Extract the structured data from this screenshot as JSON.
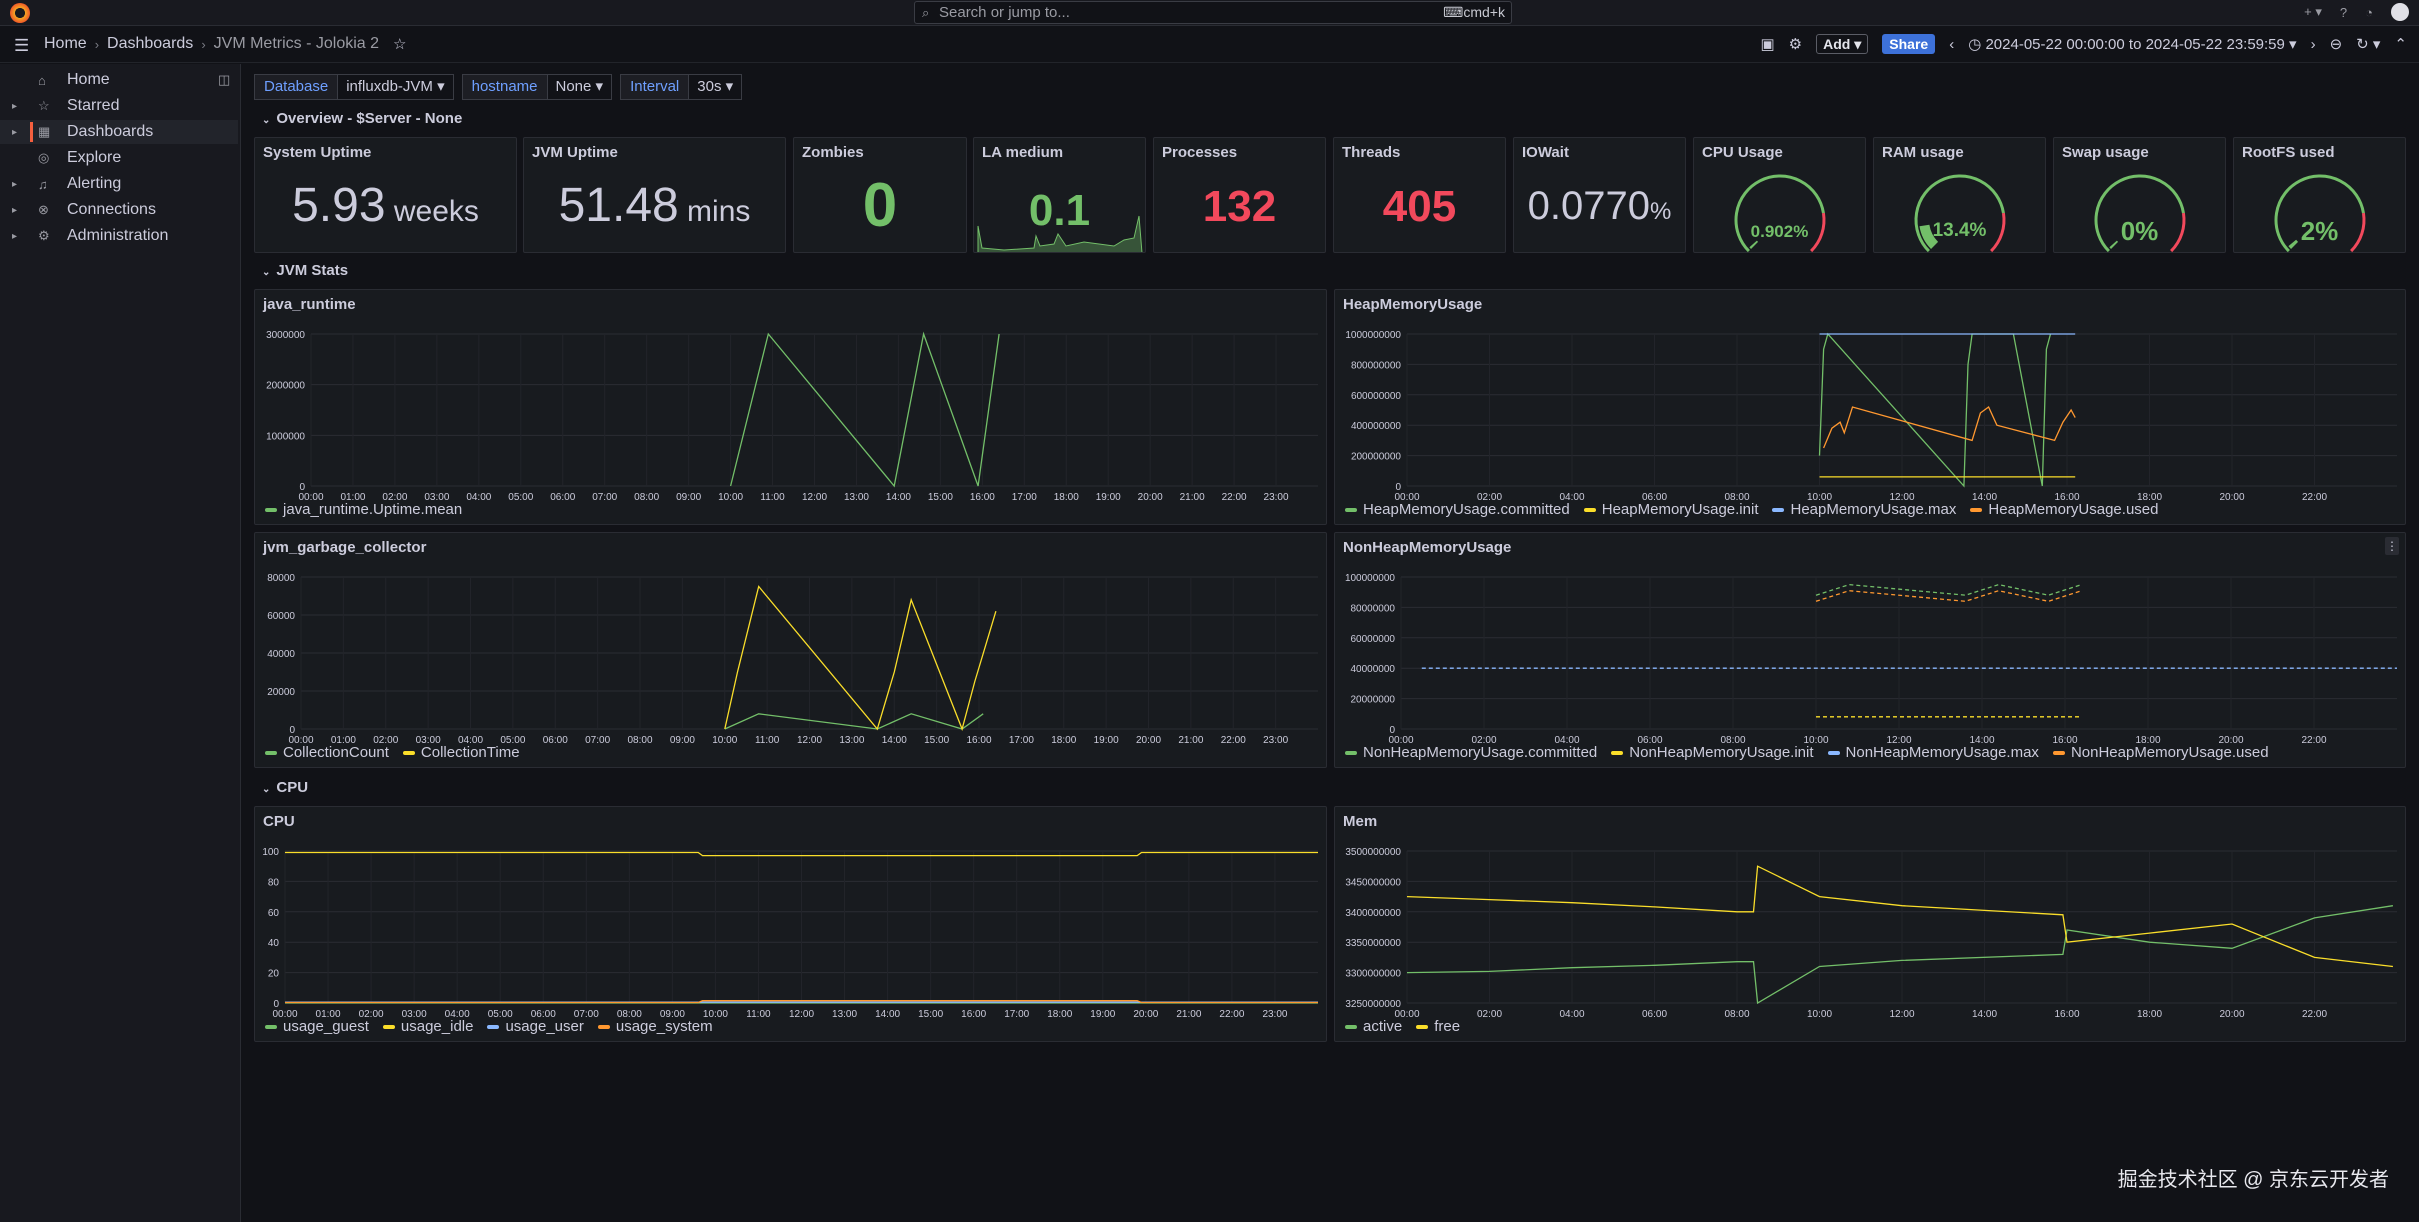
{
  "topbar": {
    "search_placeholder": "Search or jump to...",
    "search_shortcut": "⌨cmd+k"
  },
  "breadcrumb": {
    "home": "Home",
    "dashboards": "Dashboards",
    "current": "JVM Metrics - Jolokia 2"
  },
  "toolbar": {
    "add_label": "Add",
    "share_label": "Share",
    "time_range": "2024-05-22 00:00:00 to 2024-05-22 23:59:59"
  },
  "sidebar": {
    "items": [
      {
        "label": "Home",
        "icon": "home-icon"
      },
      {
        "label": "Starred",
        "icon": "star-icon"
      },
      {
        "label": "Dashboards",
        "icon": "grid-icon"
      },
      {
        "label": "Explore",
        "icon": "compass-icon"
      },
      {
        "label": "Alerting",
        "icon": "bell-icon"
      },
      {
        "label": "Connections",
        "icon": "plug-icon"
      },
      {
        "label": "Administration",
        "icon": "gear-icon"
      }
    ]
  },
  "variables": [
    {
      "label": "Database",
      "value": "influxdb-JVM"
    },
    {
      "label": "hostname",
      "value": "None"
    },
    {
      "label": "Interval",
      "value": "30s"
    }
  ],
  "rows": {
    "overview": "Overview - $Server - None",
    "jvm": "JVM Stats",
    "cpu": "CPU"
  },
  "colors": {
    "green": "#73bf69",
    "red": "#f2495c",
    "yellow": "#fade2a",
    "blue": "#8ab8ff",
    "orange": "#ff9830",
    "text": "#ccccdc"
  },
  "stats": {
    "uptime": {
      "title": "System Uptime",
      "value": "5.93",
      "unit": " weeks"
    },
    "jvm_uptime": {
      "title": "JVM Uptime",
      "value": "51.48",
      "unit": " mins"
    },
    "zombies": {
      "title": "Zombies",
      "value": "0"
    },
    "la": {
      "title": "LA medium",
      "value": "0.1"
    },
    "processes": {
      "title": "Processes",
      "value": "132"
    },
    "threads": {
      "title": "Threads",
      "value": "405"
    },
    "iowait": {
      "title": "IOWait",
      "value": "0.0770",
      "unit": "%"
    }
  },
  "gauges": [
    {
      "title": "CPU Usage",
      "value": "0.902%",
      "fraction": 0.00902
    },
    {
      "title": "RAM usage",
      "value": "13.4%",
      "fraction": 0.134
    },
    {
      "title": "Swap usage",
      "value": "0%",
      "fraction": 0
    },
    {
      "title": "RootFS used",
      "value": "2%",
      "fraction": 0.02
    }
  ],
  "panels": {
    "java_runtime": {
      "title": "java_runtime",
      "legend": [
        "java_runtime.Uptime.mean"
      ]
    },
    "heap": {
      "title": "HeapMemoryUsage",
      "legend": [
        "HeapMemoryUsage.committed",
        "HeapMemoryUsage.init",
        "HeapMemoryUsage.max",
        "HeapMemoryUsage.used"
      ]
    },
    "gc": {
      "title": "jvm_garbage_collector",
      "legend": [
        "CollectionCount",
        "CollectionTime"
      ]
    },
    "nonheap": {
      "title": "NonHeapMemoryUsage",
      "legend": [
        "NonHeapMemoryUsage.committed",
        "NonHeapMemoryUsage.init",
        "NonHeapMemoryUsage.max",
        "NonHeapMemoryUsage.used"
      ]
    },
    "cpu": {
      "title": "CPU",
      "legend": [
        "usage_guest",
        "usage_idle",
        "usage_user",
        "usage_system"
      ]
    },
    "mem": {
      "title": "Mem",
      "legend": [
        "active",
        "free"
      ]
    }
  },
  "chart_data": [
    {
      "type": "line",
      "title": "java_runtime",
      "ylim": [
        0,
        3000000
      ],
      "yticks": [
        "0",
        "1000000",
        "2000000",
        "3000000"
      ],
      "xticks": [
        "00:00",
        "01:00",
        "02:00",
        "03:00",
        "04:00",
        "05:00",
        "06:00",
        "07:00",
        "08:00",
        "09:00",
        "10:00",
        "11:00",
        "12:00",
        "13:00",
        "14:00",
        "15:00",
        "16:00",
        "17:00",
        "18:00",
        "19:00",
        "20:00",
        "21:00",
        "22:00",
        "23:00"
      ],
      "series": [
        {
          "name": "java_runtime.Uptime.mean",
          "x": [
            10.0,
            10.9,
            13.9,
            14.6,
            15.9,
            16.4
          ],
          "y": [
            0,
            3000000,
            0,
            3000000,
            0,
            3000000
          ]
        }
      ]
    },
    {
      "type": "line",
      "title": "HeapMemoryUsage",
      "ylim": [
        0,
        1000000000
      ],
      "yticks": [
        "0",
        "200000000",
        "400000000",
        "600000000",
        "800000000",
        "1000000000"
      ],
      "xticks": [
        "00:00",
        "02:00",
        "04:00",
        "06:00",
        "08:00",
        "10:00",
        "12:00",
        "14:00",
        "16:00",
        "18:00",
        "20:00",
        "22:00"
      ],
      "series": [
        {
          "name": "HeapMemoryUsage.committed",
          "x": [
            10.0,
            10.1,
            10.2,
            13.5,
            13.6,
            13.7,
            14.7,
            15.4,
            15.5,
            15.6
          ],
          "y": [
            200000000,
            900000000,
            1000000000,
            0,
            800000000,
            1000000000,
            1000000000,
            0,
            900000000,
            1000000000
          ]
        },
        {
          "name": "HeapMemoryUsage.init",
          "x": [
            10.0,
            10.8,
            13.6,
            14.3,
            15.6,
            16.2
          ],
          "y": [
            60000000,
            60000000,
            60000000,
            60000000,
            60000000,
            60000000
          ]
        },
        {
          "name": "HeapMemoryUsage.max",
          "x": [
            10.0,
            10.8,
            13.6,
            14.3,
            15.6,
            16.2
          ],
          "y": [
            1000000000,
            1000000000,
            1000000000,
            1000000000,
            1000000000,
            1000000000
          ]
        },
        {
          "name": "HeapMemoryUsage.used",
          "x": [
            10.1,
            10.3,
            10.5,
            10.6,
            10.8,
            13.7,
            13.9,
            14.1,
            14.3,
            15.7,
            15.9,
            16.1,
            16.2
          ],
          "y": [
            250000000,
            380000000,
            420000000,
            350000000,
            520000000,
            300000000,
            480000000,
            520000000,
            400000000,
            300000000,
            420000000,
            500000000,
            450000000
          ]
        }
      ]
    },
    {
      "type": "line",
      "title": "jvm_garbage_collector",
      "ylim": [
        0,
        80000
      ],
      "yticks": [
        "0",
        "20000",
        "40000",
        "60000",
        "80000"
      ],
      "xticks": [
        "00:00",
        "01:00",
        "02:00",
        "03:00",
        "04:00",
        "05:00",
        "06:00",
        "07:00",
        "08:00",
        "09:00",
        "10:00",
        "11:00",
        "12:00",
        "13:00",
        "14:00",
        "15:00",
        "16:00",
        "17:00",
        "18:00",
        "19:00",
        "20:00",
        "21:00",
        "22:00",
        "23:00"
      ],
      "series": [
        {
          "name": "CollectionCount",
          "x": [
            10.0,
            10.8,
            13.6,
            14.4,
            15.6,
            16.1
          ],
          "y": [
            0,
            8000,
            0,
            8000,
            0,
            8000
          ]
        },
        {
          "name": "CollectionTime",
          "x": [
            10.0,
            10.3,
            10.8,
            13.6,
            14.0,
            14.4,
            15.6,
            15.9,
            16.4
          ],
          "y": [
            0,
            30000,
            75000,
            0,
            30000,
            68000,
            0,
            25000,
            62000
          ]
        }
      ]
    },
    {
      "type": "line",
      "title": "NonHeapMemoryUsage",
      "ylim": [
        0,
        100000000
      ],
      "yticks": [
        "0",
        "20000000",
        "40000000",
        "60000000",
        "80000000",
        "100000000"
      ],
      "xticks": [
        "00:00",
        "02:00",
        "04:00",
        "06:00",
        "08:00",
        "10:00",
        "12:00",
        "14:00",
        "16:00",
        "18:00",
        "20:00",
        "22:00"
      ],
      "series": [
        {
          "name": "NonHeapMemoryUsage.committed",
          "x": [
            10.0,
            10.8,
            13.6,
            14.4,
            15.6,
            16.4
          ],
          "y": [
            88000000,
            95000000,
            88000000,
            95000000,
            88000000,
            95000000
          ]
        },
        {
          "name": "NonHeapMemoryUsage.init",
          "x": [
            10.0,
            10.8,
            13.6,
            14.4,
            15.6,
            16.4
          ],
          "y": [
            8000000,
            8000000,
            8000000,
            8000000,
            8000000,
            8000000
          ]
        },
        {
          "name": "NonHeapMemoryUsage.max",
          "x": [
            0.5,
            24.0
          ],
          "y": [
            40000000,
            40000000
          ]
        },
        {
          "name": "NonHeapMemoryUsage.used",
          "x": [
            10.0,
            10.8,
            13.6,
            14.4,
            15.6,
            16.4
          ],
          "y": [
            84000000,
            91000000,
            84000000,
            91000000,
            84000000,
            91000000
          ]
        }
      ]
    },
    {
      "type": "line",
      "title": "CPU",
      "ylim": [
        0,
        100
      ],
      "yticks": [
        "0",
        "20",
        "40",
        "60",
        "80",
        "100"
      ],
      "xticks": [
        "00:00",
        "01:00",
        "02:00",
        "03:00",
        "04:00",
        "05:00",
        "06:00",
        "07:00",
        "08:00",
        "09:00",
        "10:00",
        "11:00",
        "12:00",
        "13:00",
        "14:00",
        "15:00",
        "16:00",
        "17:00",
        "18:00",
        "19:00",
        "20:00",
        "21:00",
        "22:00",
        "23:00"
      ],
      "series": [
        {
          "name": "usage_guest",
          "x": [
            0,
            24
          ],
          "y": [
            0,
            0
          ]
        },
        {
          "name": "usage_idle",
          "x": [
            0,
            9.6,
            9.7,
            19.8,
            19.9,
            24
          ],
          "y": [
            99,
            99,
            97,
            97,
            99,
            99
          ]
        },
        {
          "name": "usage_user",
          "x": [
            0,
            24
          ],
          "y": [
            0.5,
            0.5
          ]
        },
        {
          "name": "usage_system",
          "x": [
            0,
            9.6,
            9.7,
            19.8,
            19.9,
            24
          ],
          "y": [
            0.3,
            0.3,
            1.5,
            1.5,
            0.3,
            0.3
          ]
        }
      ]
    },
    {
      "type": "line",
      "title": "Mem",
      "ylim": [
        3250000000,
        3500000000
      ],
      "yticks": [
        "3250000000",
        "3300000000",
        "3350000000",
        "3400000000",
        "3450000000",
        "3500000000"
      ],
      "xticks": [
        "00:00",
        "02:00",
        "04:00",
        "06:00",
        "08:00",
        "10:00",
        "12:00",
        "14:00",
        "16:00",
        "18:00",
        "20:00",
        "22:00"
      ],
      "series": [
        {
          "name": "active",
          "x": [
            0,
            2,
            4,
            6,
            8,
            8.4,
            8.5,
            10,
            12,
            15.9,
            16.0,
            18,
            20,
            22,
            23.9
          ],
          "y": [
            3300000000,
            3302000000,
            3308000000,
            3312000000,
            3318000000,
            3318000000,
            3250000000,
            3310000000,
            3320000000,
            3330000000,
            3370000000,
            3350000000,
            3340000000,
            3390000000,
            3410000000
          ]
        },
        {
          "name": "free",
          "x": [
            0,
            2,
            4,
            6,
            8,
            8.4,
            8.5,
            10,
            12,
            15.9,
            16.0,
            18,
            20,
            22,
            23.9
          ],
          "y": [
            3425000000,
            3420000000,
            3415000000,
            3408000000,
            3400000000,
            3400000000,
            3475000000,
            3425000000,
            3410000000,
            3395000000,
            3350000000,
            3365000000,
            3380000000,
            3325000000,
            3310000000
          ]
        }
      ]
    }
  ],
  "watermark": "掘金技术社区 @ 京东云开发者"
}
